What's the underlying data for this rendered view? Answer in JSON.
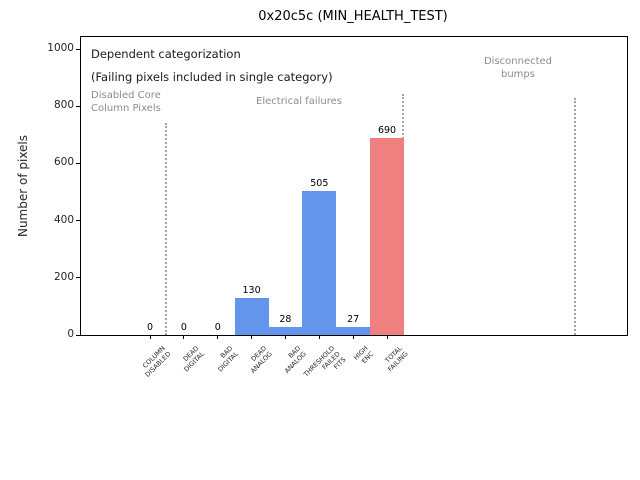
{
  "chart_data": {
    "type": "bar",
    "title": "0x20c5c (MIN_HEALTH_TEST)",
    "ylabel": "Number of pixels",
    "xlabel": "",
    "categories": [
      "COLUMN\nDISABLED",
      "DEAD\nDIGITAL",
      "BAD\nDIGITAL",
      "DEAD\nANALOG",
      "BAD\nANALOG",
      "THRESHOLD\nFAILED\nFITS",
      "HIGH\nENC",
      "TOTAL\nFAILING"
    ],
    "values": [
      0,
      0,
      0,
      130,
      28,
      505,
      27,
      690
    ],
    "bar_value_labels": [
      "0",
      "0",
      "0",
      "130",
      "28",
      "505",
      "27",
      "690"
    ],
    "bar_colors": [
      "#6495ed",
      "#6495ed",
      "#6495ed",
      "#6495ed",
      "#6495ed",
      "#6495ed",
      "#6495ed",
      "#f08080"
    ],
    "yticks": [
      0,
      200,
      400,
      600,
      800,
      1000
    ],
    "ylim": [
      0,
      1042
    ],
    "grid": false,
    "legend": "none",
    "annotations": {
      "note_line1": "Dependent categorization",
      "note_line2": "(Failing pixels included in single category)",
      "region_disabled": "Disabled Core\nColumn Pixels",
      "region_electrical": "Electrical failures",
      "region_disconnected": "Disconnected\nbumps"
    }
  },
  "colors": {
    "bar_blue": "#6495ed",
    "bar_red": "#f08080",
    "separator_gray": "#a3a3a3",
    "muted_text_gray": "#8c8c8c",
    "axis_black": "#000000"
  }
}
